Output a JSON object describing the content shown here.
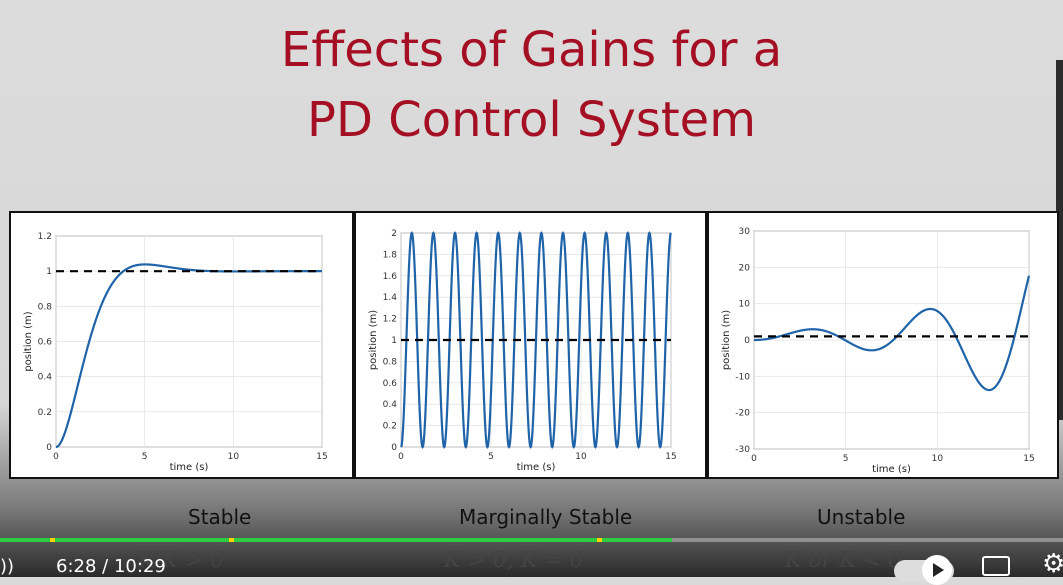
{
  "slide": {
    "title_line1": "Effects of Gains for a",
    "title_line2": "PD Control System",
    "captions": {
      "stable": "Stable",
      "marginal": "Marginally Stable",
      "unstable": "Unstable"
    },
    "formulas": {
      "stable": "K  K",
      "stable_tail": " > 0",
      "marginal": "K",
      "marginal_rest": " > 0,   K",
      "marginal_tail": " = 0",
      "unstable": "K",
      "unstable_rest": " or K",
      "unstable_tail": " < 0"
    },
    "colors": {
      "title": "#a50f23",
      "curve": "#1f63a8",
      "reference": "#000000"
    }
  },
  "player": {
    "current_time": "6:28",
    "separator": "/",
    "duration": "10:29",
    "progress_fraction": 0.632,
    "chapter_markers_fraction": [
      0.047,
      0.215,
      0.562
    ],
    "icons": [
      "volume-icon",
      "play-icon",
      "subtitles-icon",
      "settings-gear-icon"
    ]
  },
  "chart_data": [
    {
      "type": "line",
      "title": "",
      "xlabel": "time (s)",
      "ylabel": "position (m)",
      "xlim": [
        0,
        15
      ],
      "ylim": [
        0,
        1.2
      ],
      "xticks": [
        "0",
        "5",
        "10",
        "15"
      ],
      "yticks": [
        "0",
        "0.2",
        "0.4",
        "0.6",
        "0.8",
        "1",
        "1.2"
      ],
      "reference": 1,
      "response": "stable",
      "grid": true
    },
    {
      "type": "line",
      "title": "",
      "xlabel": "time (s)",
      "ylabel": "position (m)",
      "xlim": [
        0,
        15
      ],
      "ylim": [
        0,
        2
      ],
      "xticks": [
        "0",
        "5",
        "10",
        "15"
      ],
      "yticks": [
        "0",
        "0.2",
        "0.4",
        "0.6",
        "0.8",
        "1",
        "1.2",
        "1.4",
        "1.6",
        "1.8",
        "2"
      ],
      "reference": 1,
      "response": "marginal",
      "grid": true
    },
    {
      "type": "line",
      "title": "",
      "xlabel": "time (s)",
      "ylabel": "position (m)",
      "xlim": [
        0,
        15
      ],
      "ylim": [
        -30,
        30
      ],
      "xticks": [
        "0",
        "5",
        "10",
        "15"
      ],
      "yticks": [
        "-30",
        "-20",
        "-10",
        "0",
        "10",
        "20",
        "30"
      ],
      "reference": 1,
      "response": "unstable",
      "grid": true
    }
  ]
}
